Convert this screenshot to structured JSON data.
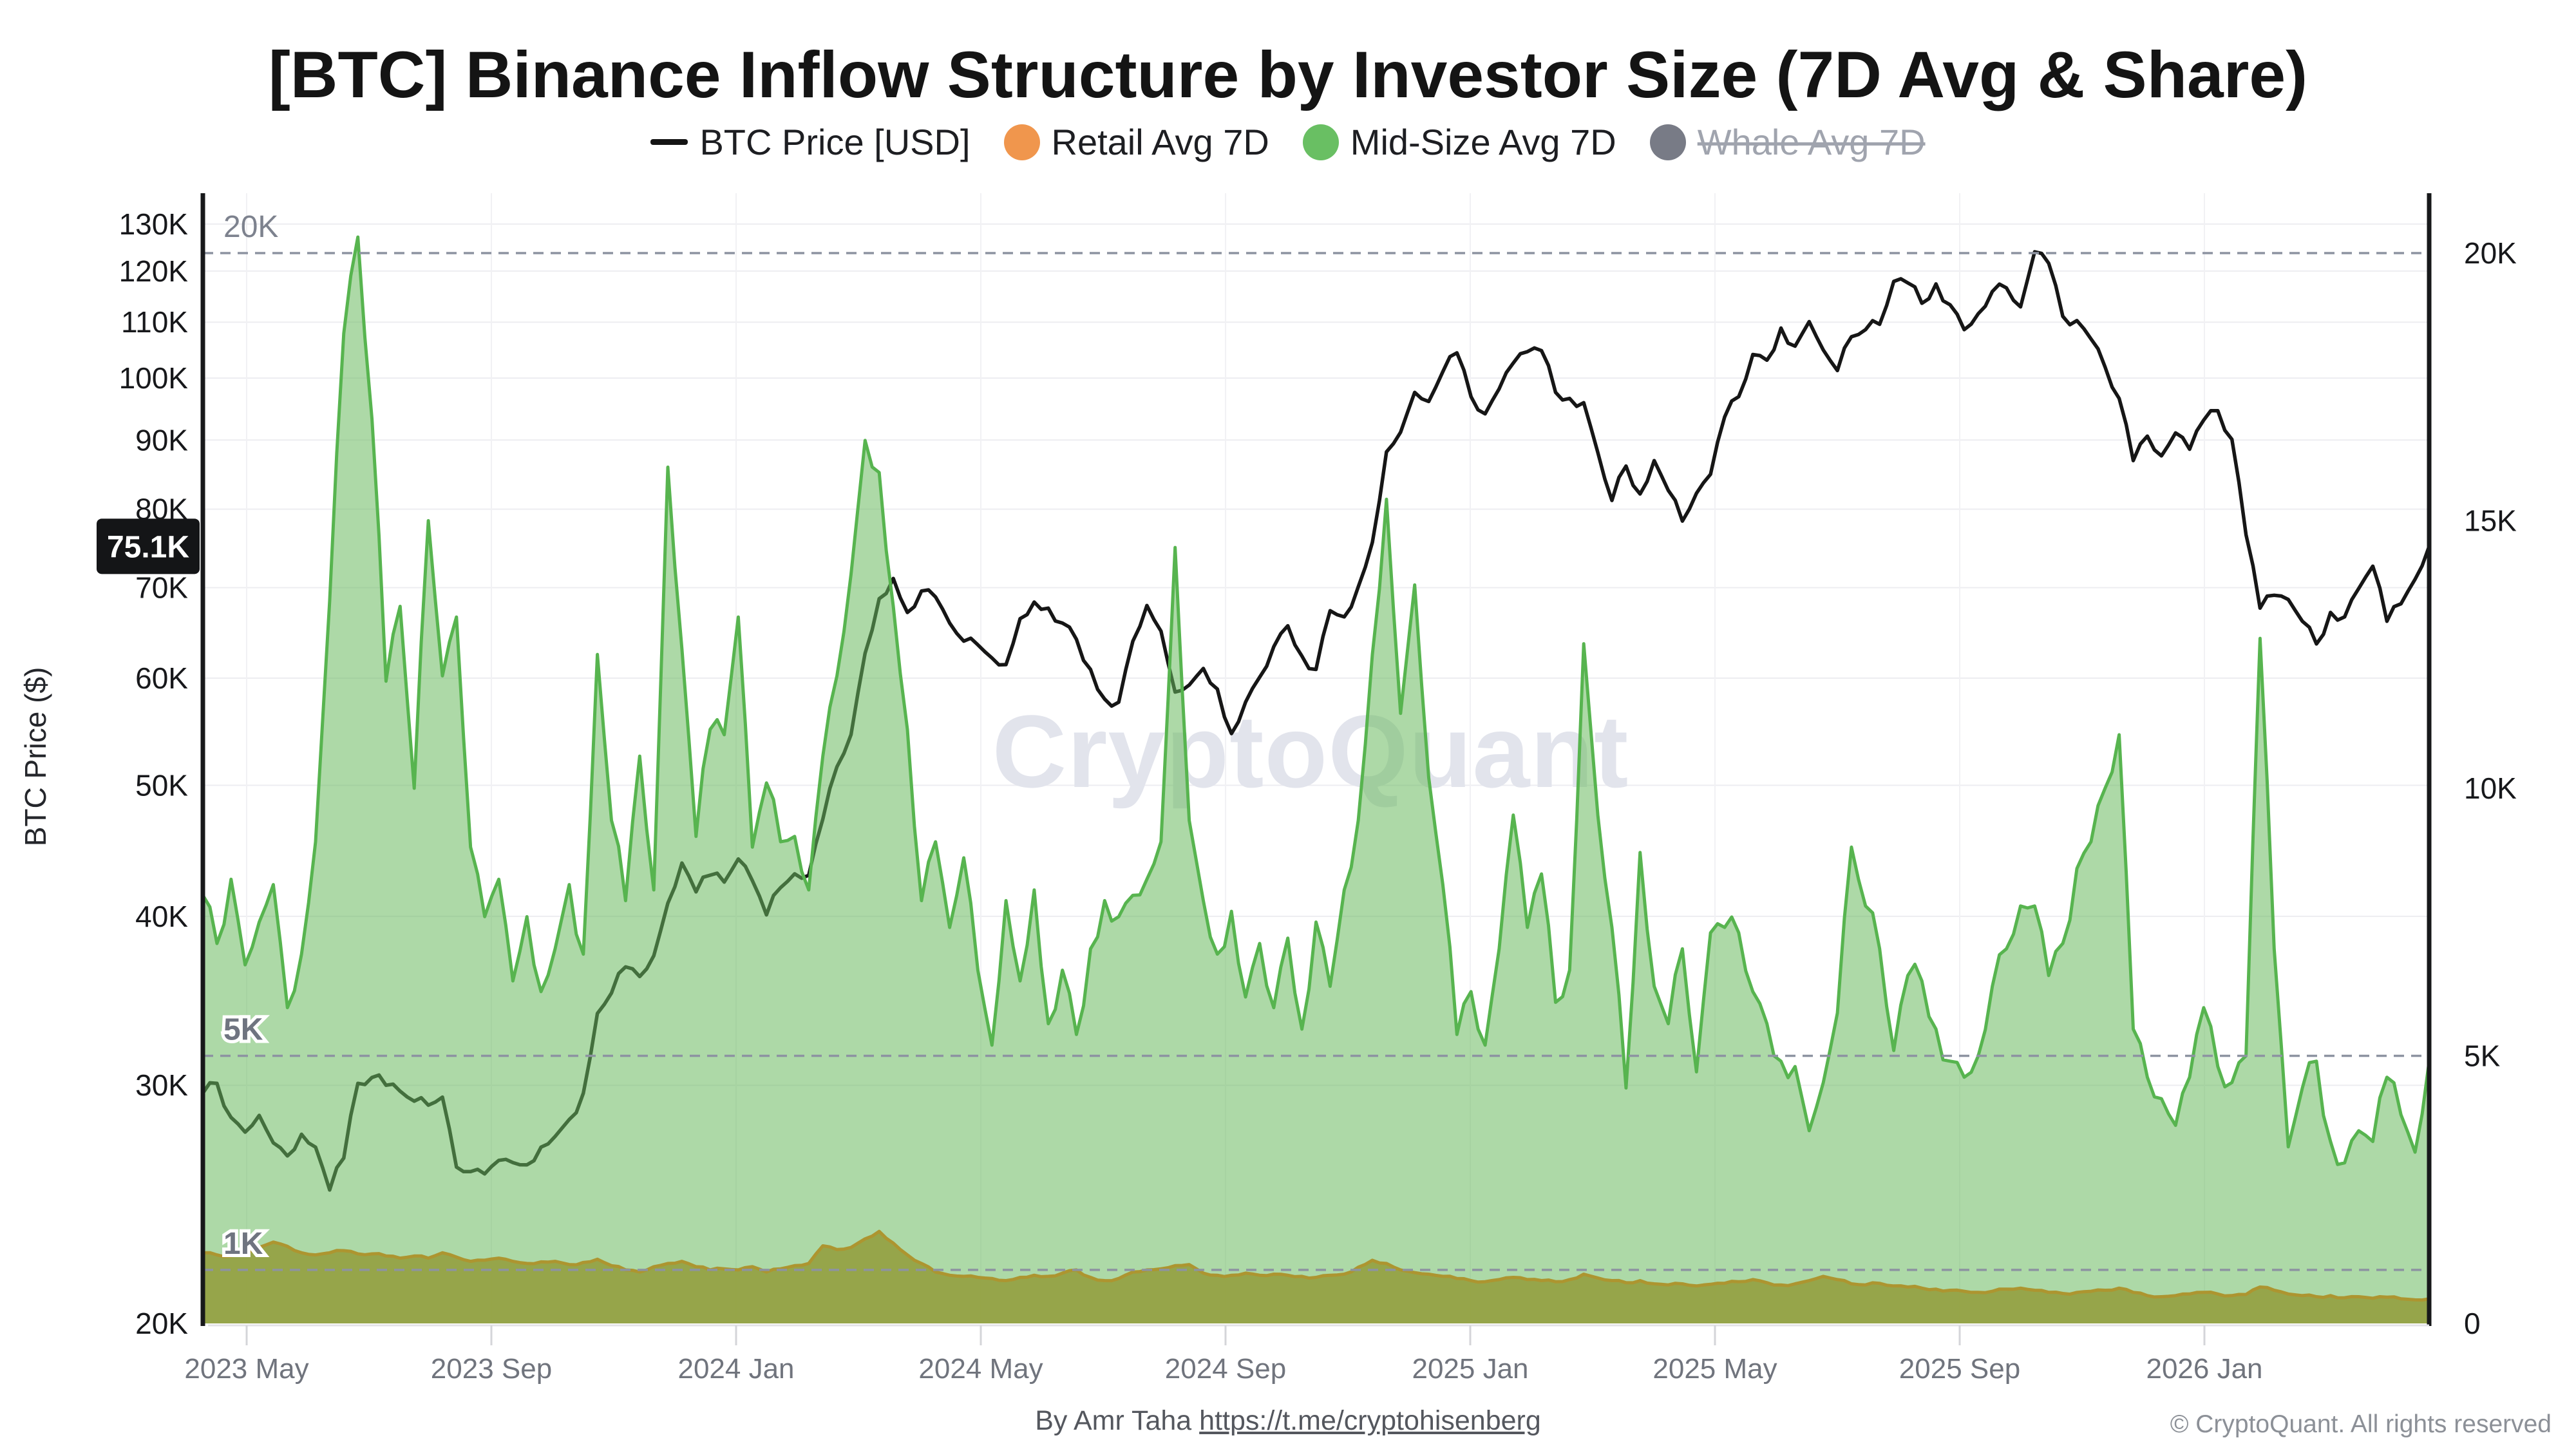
{
  "title": "[BTC] Binance Inflow Structure by Investor Size (7D Avg & Share)",
  "legend": {
    "items": [
      {
        "label": "BTC Price [USD]",
        "marker": "line",
        "color": "#141414",
        "disabled": false
      },
      {
        "label": "Retail Avg 7D",
        "marker": "dot",
        "color": "#f0964d",
        "disabled": false
      },
      {
        "label": "Mid-Size Avg 7D",
        "marker": "dot",
        "color": "#69bf63",
        "disabled": false
      },
      {
        "label": "Whale Avg 7D",
        "marker": "dot",
        "color": "#787b86",
        "disabled": true
      }
    ]
  },
  "left_axis": {
    "label": "BTC Price ($)",
    "tick_labels": [
      "20K",
      "30K",
      "40K",
      "50K",
      "60K",
      "70K",
      "80K",
      "90K",
      "100K",
      "110K",
      "120K",
      "130K"
    ],
    "tick_values_k": [
      20,
      30,
      40,
      50,
      60,
      70,
      80,
      90,
      100,
      110,
      120,
      130
    ],
    "scale": "log"
  },
  "right_axis": {
    "tick_labels": [
      "0",
      "5K",
      "10K",
      "15K",
      "20K"
    ],
    "tick_values": [
      0,
      5,
      10,
      15,
      20
    ],
    "scale": "linear"
  },
  "x_axis": {
    "tick_labels": [
      "2023 May",
      "2023 Sep",
      "2024 Jan",
      "2024 May",
      "2024 Sep",
      "2025 Jan",
      "2025 May",
      "2025 Sep",
      "2026 Jan"
    ]
  },
  "price_badge": {
    "label": "75.1K",
    "value_k": 75.1,
    "bg": "#141517",
    "fg": "#ffffff"
  },
  "guide_labels": {
    "g20": "20K",
    "g5": "5K",
    "g1": "1K"
  },
  "watermark": "CryptoQuant",
  "footer": {
    "credit": "By Amr Taha ",
    "link": "https://t.me/cryptohisenberg",
    "copyright": "© CryptoQuant. All rights reserved"
  },
  "chart_data": {
    "type": "area",
    "title": "[BTC] Binance Inflow Structure by Investor Size (7D Avg & Share)",
    "x_start": "2023-04-09",
    "x_end": "2026-04-21",
    "x_step_days": 7,
    "points_per_series": 159,
    "left_axis_label": "BTC Price ($)",
    "left_range_k": [
      20,
      130
    ],
    "right_range_btc": [
      0,
      21000
    ],
    "grid": "on",
    "legend_position": "top",
    "dashed_guides_right_axis_btc": [
      20000,
      5000,
      1000
    ],
    "series": [
      {
        "name": "BTC Price [USD]",
        "axis": "left",
        "unit": "thousand USD",
        "color": "#161616",
        "style": "line",
        "values": [
          29.6,
          30.1,
          28.4,
          27.7,
          28.5,
          27.2,
          26.6,
          27.6,
          27.0,
          25.1,
          26.5,
          30.1,
          30.4,
          30.0,
          29.7,
          29.2,
          29.0,
          29.4,
          26.1,
          25.9,
          25.8,
          26.4,
          26.3,
          26.2,
          27.0,
          27.5,
          28.3,
          29.6,
          33.9,
          35.1,
          36.7,
          36.1,
          37.4,
          40.9,
          43.8,
          41.7,
          42.9,
          42.4,
          44.1,
          42.5,
          40.1,
          42.0,
          43.0,
          42.9,
          47.2,
          51.6,
          54.5,
          62.6,
          68.7,
          71.1,
          67.1,
          69.6,
          68.9,
          65.9,
          63.9,
          63.5,
          62.1,
          61.4,
          66.4,
          68.3,
          67.6,
          65.9,
          64.1,
          60.9,
          57.9,
          57.6,
          63.9,
          67.9,
          65.0,
          58.6,
          59.3,
          61.0,
          58.9,
          54.6,
          57.6,
          60.1,
          63.3,
          65.6,
          62.3,
          60.9,
          67.3,
          66.6,
          70.1,
          75.6,
          88.2,
          91.2,
          97.6,
          96.1,
          101.1,
          104.4,
          96.9,
          94.1,
          98.2,
          102.6,
          104.6,
          104.8,
          97.6,
          96.6,
          95.9,
          88.1,
          81.2,
          86.1,
          82.1,
          86.9,
          82.6,
          78.4,
          82.2,
          84.9,
          93.6,
          96.9,
          104.1,
          103.1,
          108.9,
          105.6,
          110.1,
          104.9,
          101.3,
          107.3,
          108.6,
          109.6,
          117.9,
          117.6,
          113.6,
          117.4,
          113.3,
          108.6,
          111.6,
          115.9,
          116.6,
          112.9,
          124.0,
          121.6,
          111.1,
          110.3,
          106.9,
          101.9,
          96.6,
          86.9,
          90.6,
          87.6,
          91.1,
          88.6,
          93.1,
          94.6,
          90.1,
          76.6,
          67.6,
          69.1,
          68.6,
          66.1,
          63.6,
          67.1,
          66.6,
          69.9,
          72.6,
          66.1,
          68.1,
          71.0,
          75.1
        ]
      },
      {
        "name": "Mid-Size Avg 7D",
        "axis": "right",
        "unit": "thousand BTC",
        "color": "#57b44f",
        "fill": "rgba(106,186,94,0.55)",
        "style": "area",
        "values": [
          8.0,
          7.1,
          8.3,
          6.7,
          7.5,
          8.2,
          5.9,
          6.9,
          9.0,
          13.5,
          18.5,
          20.3,
          16.9,
          12.0,
          13.4,
          10.0,
          15.0,
          12.1,
          13.2,
          8.9,
          7.6,
          8.3,
          6.4,
          7.6,
          6.2,
          7.0,
          8.2,
          6.9,
          12.5,
          9.4,
          7.9,
          10.6,
          8.1,
          16.0,
          12.6,
          9.1,
          11.1,
          11.0,
          13.2,
          8.9,
          10.1,
          9.0,
          9.1,
          8.1,
          10.6,
          12.1,
          14.0,
          16.5,
          15.9,
          13.4,
          11.1,
          7.9,
          9.0,
          7.4,
          8.7,
          6.6,
          5.2,
          7.9,
          6.4,
          8.1,
          5.6,
          6.6,
          5.4,
          7.0,
          7.9,
          7.6,
          8.0,
          8.3,
          9.0,
          14.5,
          9.4,
          7.9,
          6.9,
          7.7,
          6.1,
          7.1,
          5.9,
          7.2,
          5.5,
          7.5,
          6.3,
          8.1,
          9.4,
          12.5,
          15.4,
          11.4,
          13.8,
          10.2,
          8.2,
          5.4,
          6.2,
          5.2,
          7.0,
          9.5,
          7.4,
          8.4,
          6.0,
          6.6,
          12.7,
          9.5,
          7.4,
          4.4,
          8.8,
          6.3,
          5.6,
          7.0,
          4.7,
          7.3,
          7.4,
          7.3,
          6.2,
          5.6,
          4.9,
          4.8,
          3.6,
          4.5,
          5.8,
          8.9,
          7.8,
          7.0,
          5.1,
          6.5,
          6.4,
          5.5,
          4.9,
          4.6,
          5.0,
          6.3,
          7.0,
          7.8,
          7.8,
          6.5,
          7.1,
          8.5,
          9.0,
          10.0,
          11.0,
          5.5,
          4.6,
          4.2,
          3.7,
          4.6,
          5.9,
          4.8,
          4.5,
          5.0,
          12.8,
          7.0,
          3.3,
          4.4,
          4.9,
          3.4,
          3.0,
          3.6,
          3.4,
          4.6,
          3.9,
          3.2,
          4.9
        ]
      },
      {
        "name": "Retail Avg 7D",
        "axis": "right",
        "unit": "thousand BTC",
        "color": "#ad9530",
        "fill": "#95a246",
        "style": "area",
        "values": [
          1.32,
          1.28,
          1.26,
          1.31,
          1.42,
          1.52,
          1.44,
          1.32,
          1.28,
          1.32,
          1.36,
          1.3,
          1.3,
          1.26,
          1.22,
          1.26,
          1.22,
          1.32,
          1.24,
          1.16,
          1.18,
          1.22,
          1.16,
          1.12,
          1.15,
          1.16,
          1.1,
          1.14,
          1.2,
          1.08,
          1.0,
          0.96,
          1.06,
          1.12,
          1.16,
          1.06,
          1.0,
          1.02,
          1.0,
          1.06,
          0.96,
          1.02,
          1.08,
          1.12,
          1.45,
          1.38,
          1.42,
          1.58,
          1.72,
          1.5,
          1.28,
          1.12,
          0.96,
          0.9,
          0.88,
          0.86,
          0.84,
          0.8,
          0.86,
          0.9,
          0.88,
          0.94,
          1.0,
          0.86,
          0.8,
          0.84,
          0.96,
          1.0,
          1.02,
          1.08,
          1.1,
          0.94,
          0.9,
          0.9,
          0.94,
          0.9,
          0.92,
          0.9,
          0.88,
          0.86,
          0.9,
          0.92,
          1.05,
          1.18,
          1.12,
          1.0,
          0.95,
          0.92,
          0.88,
          0.84,
          0.8,
          0.78,
          0.82,
          0.86,
          0.82,
          0.8,
          0.78,
          0.82,
          0.92,
          0.85,
          0.8,
          0.76,
          0.8,
          0.74,
          0.72,
          0.74,
          0.7,
          0.73,
          0.75,
          0.78,
          0.82,
          0.76,
          0.72,
          0.74,
          0.8,
          0.88,
          0.82,
          0.74,
          0.72,
          0.75,
          0.7,
          0.68,
          0.66,
          0.64,
          0.62,
          0.6,
          0.58,
          0.6,
          0.64,
          0.66,
          0.62,
          0.58,
          0.56,
          0.58,
          0.6,
          0.62,
          0.66,
          0.58,
          0.52,
          0.5,
          0.52,
          0.55,
          0.58,
          0.55,
          0.52,
          0.54,
          0.68,
          0.62,
          0.55,
          0.52,
          0.5,
          0.52,
          0.48,
          0.5,
          0.47,
          0.49,
          0.46,
          0.44,
          0.46
        ]
      },
      {
        "name": "Whale Avg 7D",
        "axis": "right",
        "unit": "thousand BTC",
        "color": "#787b86",
        "style": "area",
        "disabled": true,
        "values": []
      }
    ]
  }
}
